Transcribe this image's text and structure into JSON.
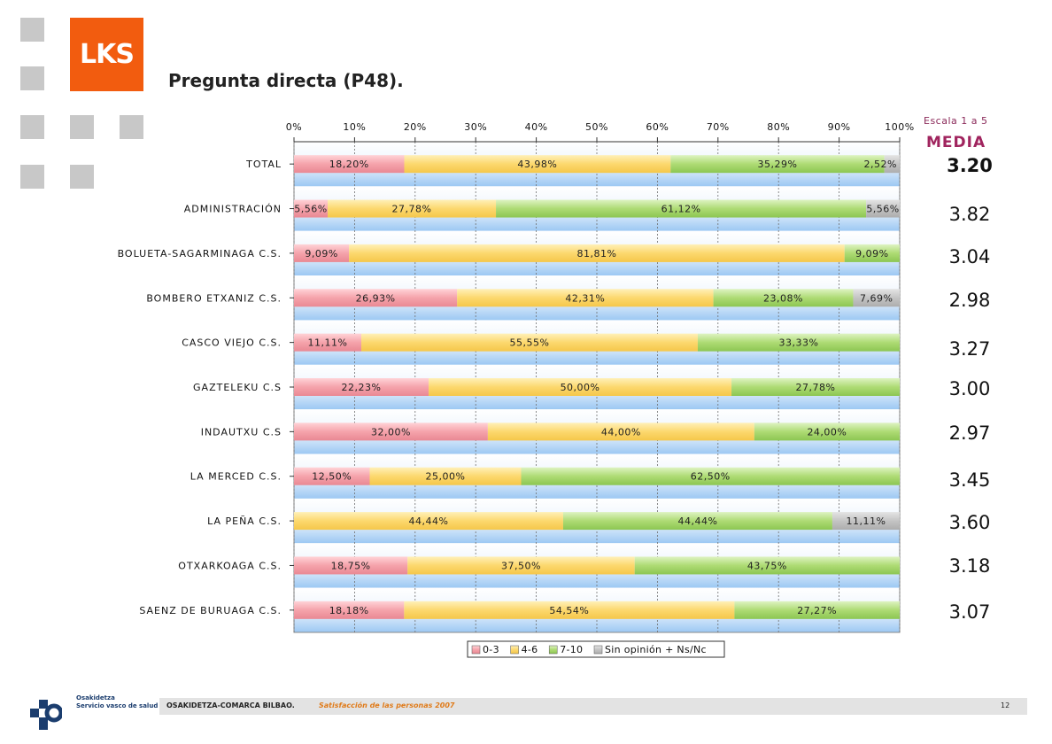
{
  "header": {
    "logo_text": "LKS",
    "title": "Pregunta directa (P48).",
    "scale_note": "Escala 1 a 5",
    "mean_label": "MEDIA"
  },
  "colors": {
    "band1": "#f0a0a8",
    "band2": "#fbd46a",
    "band3": "#a6d66a",
    "band4": "#bdbdbd",
    "plot_bg": "#a9cff5",
    "accent": "#f25c0f"
  },
  "chart_data": {
    "type": "bar",
    "orientation": "horizontal",
    "stacked": true,
    "normalized": true,
    "title": "",
    "xlabel": "",
    "ylabel": "",
    "xlim": [
      0,
      100
    ],
    "x_ticks": [
      "0%",
      "10%",
      "20%",
      "30%",
      "40%",
      "50%",
      "60%",
      "70%",
      "80%",
      "90%",
      "100%"
    ],
    "grid": true,
    "legend_position": "bottom",
    "categories": [
      "TOTAL",
      "ADMINISTRACIÓN",
      "BOLUETA-SAGARMINAGA C.S.",
      "BOMBERO ETXANIZ C.S.",
      "CASCO VIEJO C.S.",
      "GAZTELEKU C.S",
      "INDAUTXU C.S",
      "LA MERCED C.S.",
      "LA PEÑA C.S.",
      "OTXARKOAGA C.S.",
      "SAENZ DE BURUAGA C.S."
    ],
    "series": [
      {
        "name": "0-3",
        "values": [
          18.2,
          5.56,
          9.09,
          26.93,
          11.11,
          22.23,
          32.0,
          12.5,
          0,
          18.75,
          18.18
        ],
        "labels": [
          "18,20%",
          "5,56%",
          "9,09%",
          "26,93%",
          "11,11%",
          "22,23%",
          "32,00%",
          "12,50%",
          "",
          "18,75%",
          "18,18%"
        ]
      },
      {
        "name": "4-6",
        "values": [
          43.98,
          27.78,
          81.81,
          42.31,
          55.55,
          50.0,
          44.0,
          25.0,
          44.44,
          37.5,
          54.54
        ],
        "labels": [
          "43,98%",
          "27,78%",
          "81,81%",
          "42,31%",
          "55,55%",
          "50,00%",
          "44,00%",
          "25,00%",
          "44,44%",
          "37,50%",
          "54,54%"
        ]
      },
      {
        "name": "7-10",
        "values": [
          35.29,
          61.12,
          9.09,
          23.08,
          33.33,
          27.78,
          24.0,
          62.5,
          44.44,
          43.75,
          27.27
        ],
        "labels": [
          "35,29%",
          "61,12%",
          "9,09%",
          "23,08%",
          "33,33%",
          "27,78%",
          "24,00%",
          "62,50%",
          "44,44%",
          "43,75%",
          "27,27%"
        ]
      },
      {
        "name": "Sin opinión + Ns/Nc",
        "values": [
          2.52,
          5.56,
          0,
          7.69,
          0,
          0,
          0,
          0,
          11.11,
          0,
          0
        ],
        "labels": [
          "2,52%",
          "5,56%",
          "",
          "7,69%",
          "",
          "",
          "",
          "",
          "11,11%",
          "",
          ""
        ]
      }
    ],
    "means": [
      "3.20",
      "3.82",
      "3.04",
      "2.98",
      "3.27",
      "3.00",
      "2.97",
      "3.45",
      "3.60",
      "3.18",
      "3.07"
    ]
  },
  "footer": {
    "org": "OSAKIDETZA-COMARCA BILBAO.",
    "subtitle": "Satisfacción de las personas 2007",
    "page_number": "12",
    "logo_line1": "Osakidetza",
    "logo_line2": "Servicio vasco de salud"
  }
}
